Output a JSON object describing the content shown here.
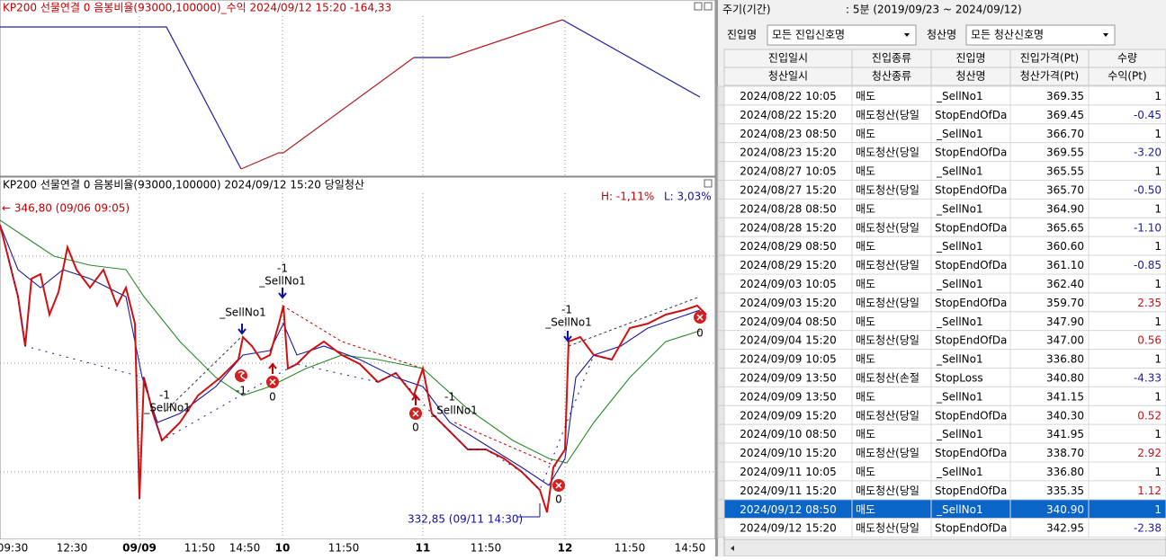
{
  "top_panel": {
    "title": "KP200 선물연결 0 음봉비율(93000,100000)_수익 2024/09/12 15:20 -164,33"
  },
  "price_panel": {
    "title": "KP200 선물연결 0 음봉비율(93000,100000)  2024/09/12 15:20 당일청산",
    "high_pct": "H: -1,11%",
    "low_pct": "L: 3,03%",
    "high_marker": "← 346,80 (09/06 09:05)",
    "low_marker": "332,85 (09/11 14:30)",
    "signals": [
      "-1",
      "_SellNo1",
      "_SellNo1",
      "-1",
      "-1",
      "_SellNo1",
      "0",
      "0",
      "-1",
      "_SellNo1",
      "0",
      "-1",
      "_SellNo1",
      "0"
    ],
    "x_labels": [
      "09:30",
      "12:30",
      "09/09",
      "11:50",
      "14:50",
      "10",
      "11:50",
      "11",
      "11:50",
      "12",
      "11:50",
      "14:50"
    ]
  },
  "side_panel": {
    "period_label": "주기(기간)",
    "period_value": ": 5분 (2019/09/23 ~ 2024/09/12)",
    "entry_filter_label": "진입명",
    "entry_filter_value": "모든 진입신호명",
    "exit_filter_label": "청산명",
    "exit_filter_value": "모든 청산신호명",
    "headers": [
      [
        "진입일시",
        "진입종류",
        "진입명",
        "진입가격(Pt)",
        "수량"
      ],
      [
        "청산일시",
        "청산종류",
        "청산명",
        "청산가격(Pt)",
        "수익(Pt)"
      ]
    ],
    "rows": [
      [
        "2024/08/22 10:05",
        "매도",
        "_SellNo1",
        "369.35",
        "1"
      ],
      [
        "2024/08/22 15:20",
        "매도청산(당일",
        "StopEndOfDa",
        "369.45",
        "-0.45"
      ],
      [
        "2024/08/23 08:50",
        "매도",
        "_SellNo1",
        "366.70",
        "1"
      ],
      [
        "2024/08/23 15:20",
        "매도청산(당일",
        "StopEndOfDa",
        "369.55",
        "-3.20"
      ],
      [
        "2024/08/27 10:05",
        "매도",
        "_SellNo1",
        "365.55",
        "1"
      ],
      [
        "2024/08/27 15:20",
        "매도청산(당일",
        "StopEndOfDa",
        "365.70",
        "-0.50"
      ],
      [
        "2024/08/28 08:50",
        "매도",
        "_SellNo1",
        "364.90",
        "1"
      ],
      [
        "2024/08/28 15:20",
        "매도청산(당일",
        "StopEndOfDa",
        "365.65",
        "-1.10"
      ],
      [
        "2024/08/29 08:50",
        "매도",
        "_SellNo1",
        "360.60",
        "1"
      ],
      [
        "2024/08/29 15:20",
        "매도청산(당일",
        "StopEndOfDa",
        "361.10",
        "-0.85"
      ],
      [
        "2024/09/03 10:05",
        "매도",
        "_SellNo1",
        "362.40",
        "1"
      ],
      [
        "2024/09/03 15:20",
        "매도청산(당일",
        "StopEndOfDa",
        "359.70",
        "2.35"
      ],
      [
        "2024/09/04 08:50",
        "매도",
        "_SellNo1",
        "347.90",
        "1"
      ],
      [
        "2024/09/04 15:20",
        "매도청산(당일",
        "StopEndOfDa",
        "347.00",
        "0.56"
      ],
      [
        "2024/09/09 10:05",
        "매도",
        "_SellNo1",
        "336.80",
        "1"
      ],
      [
        "2024/09/09 13:50",
        "매도청산(손절",
        "StopLoss",
        "340.80",
        "-4.33"
      ],
      [
        "2024/09/09 13:50",
        "매도",
        "_SellNo1",
        "341.15",
        "1"
      ],
      [
        "2024/09/09 15:20",
        "매도청산(당일",
        "StopEndOfDa",
        "340.30",
        "0.52"
      ],
      [
        "2024/09/10 08:50",
        "매도",
        "_SellNo1",
        "341.95",
        "1"
      ],
      [
        "2024/09/10 15:20",
        "매도청산(당일",
        "StopEndOfDa",
        "338.70",
        "2.92"
      ],
      [
        "2024/09/11 10:05",
        "매도",
        "_SellNo1",
        "336.80",
        "1"
      ],
      [
        "2024/09/11 15:20",
        "매도청산(당일",
        "StopEndOfDa",
        "335.35",
        "1.12"
      ],
      [
        "2024/09/12 08:50",
        "매도",
        "_SellNo1",
        "340.90",
        "1"
      ],
      [
        "2024/09/12 15:20",
        "매도청산(당일",
        "StopEndOfDa",
        "342.95",
        "-2.38"
      ]
    ],
    "selected_row": 22
  }
}
